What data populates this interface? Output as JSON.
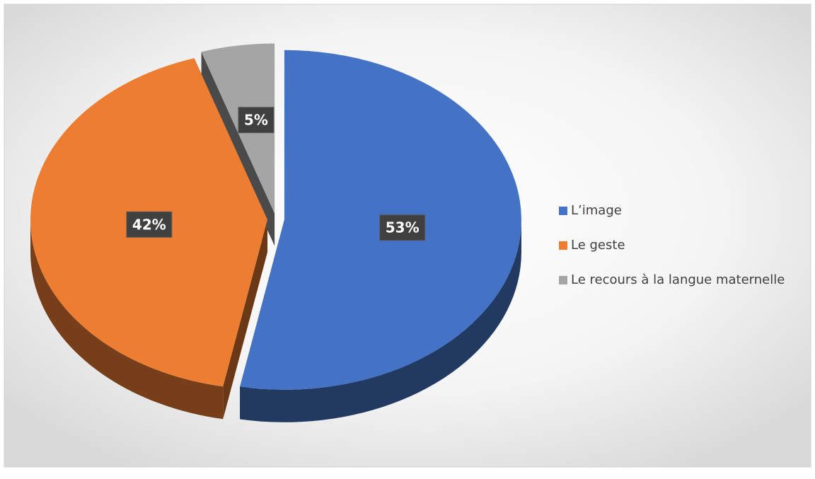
{
  "chart_data": {
    "type": "pie",
    "categories": [
      "L’image",
      "Le geste",
      "Le recours à la langue maternelle"
    ],
    "values": [
      53,
      42,
      5
    ],
    "value_labels": [
      "53%",
      "42%",
      "5%"
    ],
    "colors": [
      "#4472c4",
      "#ed7d31",
      "#a5a5a5"
    ],
    "legend": "right"
  }
}
